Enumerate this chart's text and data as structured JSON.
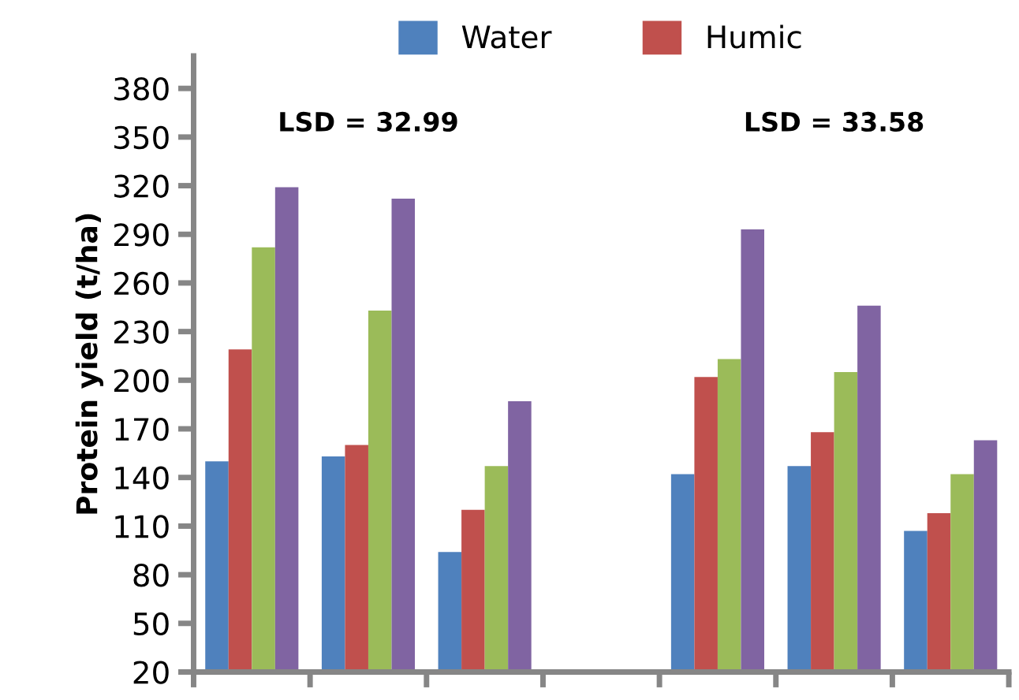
{
  "chart_data": {
    "type": "bar",
    "ylabel": "Protein yield (t/ha)",
    "categories": [
      null,
      null,
      null,
      null,
      null,
      null,
      null
    ],
    "series": [
      {
        "name": "Water",
        "color": "#4f81bd",
        "values": [
          150,
          153,
          94,
          null,
          142,
          147,
          107
        ]
      },
      {
        "name": "Humic",
        "color": "#c0504d",
        "values": [
          219,
          160,
          120,
          null,
          202,
          168,
          118
        ]
      },
      {
        "color": "#9bbb59",
        "values": [
          282,
          243,
          147,
          null,
          213,
          205,
          142
        ]
      },
      {
        "color": "#8064a2",
        "values": [
          319,
          312,
          187,
          null,
          293,
          246,
          163
        ]
      }
    ],
    "ylim": [
      20,
      400
    ],
    "yticks": [
      20,
      50,
      80,
      110,
      140,
      170,
      200,
      230,
      260,
      290,
      320,
      350,
      380
    ],
    "annotations": [
      "LSD = 32.99",
      "LSD = 33.58"
    ],
    "legend": "top",
    "grid": false
  }
}
